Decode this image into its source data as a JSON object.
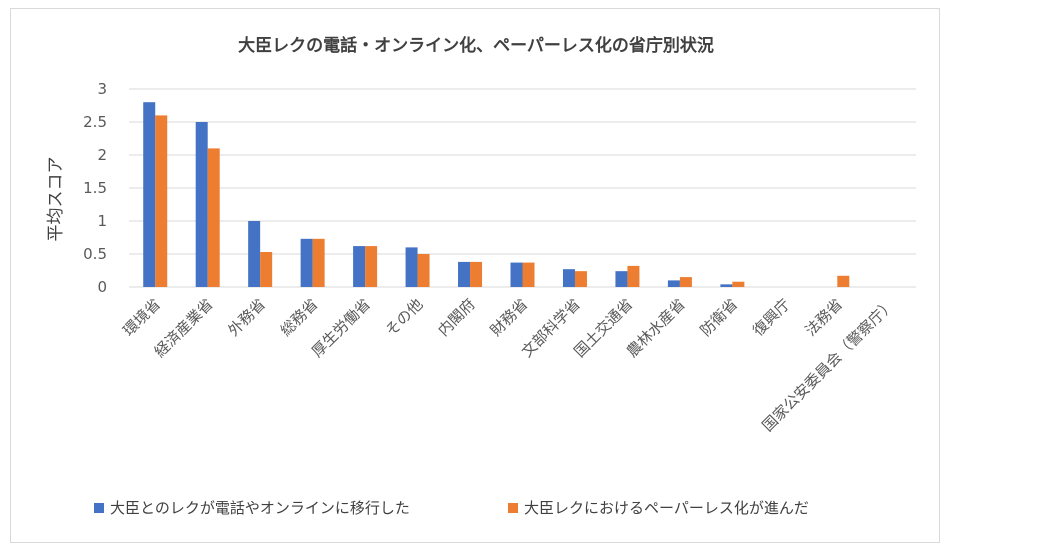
{
  "chart_data": {
    "type": "bar",
    "title": "大臣レクの電話・オンライン化、ペーパーレス化の省庁別状況",
    "ylabel": "平均スコア",
    "xlabel": "",
    "ylim": [
      0,
      3
    ],
    "yticks": [
      "0",
      "0.5",
      "1",
      "1.5",
      "2",
      "2.5",
      "3"
    ],
    "grid": true,
    "legend_position": "bottom",
    "categories": [
      "環境省",
      "経済産業省",
      "外務省",
      "総務省",
      "厚生労働省",
      "その他",
      "内閣府",
      "財務省",
      "文部科学省",
      "国土交通省",
      "農林水産省",
      "防衛省",
      "復興庁",
      "法務省",
      "国家公安委員会（警察庁）"
    ],
    "series": [
      {
        "name": "大臣とのレクが電話やオンラインに移行した",
        "color": "#4472c4",
        "values": [
          2.8,
          2.5,
          1.0,
          0.73,
          0.62,
          0.6,
          0.38,
          0.37,
          0.27,
          0.24,
          0.1,
          0.04,
          0,
          0,
          0
        ]
      },
      {
        "name": "大臣レクにおけるペーパーレス化が進んだ",
        "color": "#ed7d31",
        "values": [
          2.6,
          2.1,
          0.53,
          0.73,
          0.62,
          0.5,
          0.38,
          0.37,
          0.24,
          0.32,
          0.15,
          0.08,
          0,
          0.17,
          0
        ]
      }
    ]
  }
}
